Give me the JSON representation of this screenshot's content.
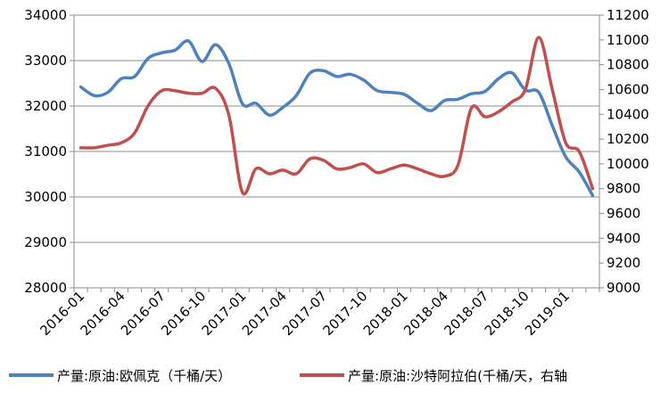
{
  "chart_data": {
    "type": "line",
    "x": [
      "2016-01",
      "2016-02",
      "2016-03",
      "2016-04",
      "2016-05",
      "2016-06",
      "2016-07",
      "2016-08",
      "2016-09",
      "2016-10",
      "2016-11",
      "2016-12",
      "2017-01",
      "2017-02",
      "2017-03",
      "2017-04",
      "2017-05",
      "2017-06",
      "2017-07",
      "2017-08",
      "2017-09",
      "2017-10",
      "2017-11",
      "2017-12",
      "2018-01",
      "2018-02",
      "2018-03",
      "2018-04",
      "2018-05",
      "2018-06",
      "2018-07",
      "2018-08",
      "2018-09",
      "2018-10",
      "2018-11",
      "2018-12",
      "2019-01",
      "2019-02",
      "2019-03"
    ],
    "x_tick_labels": [
      "2016-01",
      "2016-04",
      "2016-07",
      "2016-10",
      "2017-01",
      "2017-04",
      "2017-07",
      "2017-10",
      "2018-01",
      "2018-04",
      "2018-07",
      "2018-10",
      "2019-01"
    ],
    "y_left": {
      "min": 28000,
      "max": 34000,
      "ticks": [
        28000,
        29000,
        30000,
        31000,
        32000,
        33000,
        34000
      ]
    },
    "y_right": {
      "min": 9000,
      "max": 11200,
      "ticks": [
        9000,
        9200,
        9400,
        9600,
        9800,
        10000,
        10200,
        10400,
        10600,
        10800,
        11000,
        11200
      ]
    },
    "grid": true,
    "legend_position": "bottom",
    "series": [
      {
        "name": "产量:原油:欧佩克（千桶/天）",
        "axis": "left",
        "color": "#4F81BD",
        "values": [
          32420,
          32230,
          32300,
          32600,
          32650,
          33050,
          33170,
          33230,
          33430,
          32980,
          33350,
          32930,
          32050,
          32060,
          31800,
          31970,
          32230,
          32720,
          32780,
          32650,
          32700,
          32570,
          32340,
          32300,
          32260,
          32060,
          31900,
          32120,
          32150,
          32270,
          32320,
          32600,
          32730,
          32350,
          32300,
          31570,
          30880,
          30550,
          30030
        ]
      },
      {
        "name": "产量:原油:沙特阿拉伯(千桶/天，右轴",
        "axis": "right",
        "color": "#C0504D",
        "values": [
          10130,
          10130,
          10150,
          10170,
          10250,
          10470,
          10590,
          10590,
          10570,
          10570,
          10610,
          10390,
          9770,
          9960,
          9920,
          9950,
          9920,
          10040,
          10030,
          9960,
          9970,
          10000,
          9930,
          9960,
          9990,
          9960,
          9920,
          9900,
          9990,
          10450,
          10380,
          10420,
          10500,
          10600,
          11020,
          10600,
          10170,
          10100,
          9800
        ]
      }
    ]
  }
}
